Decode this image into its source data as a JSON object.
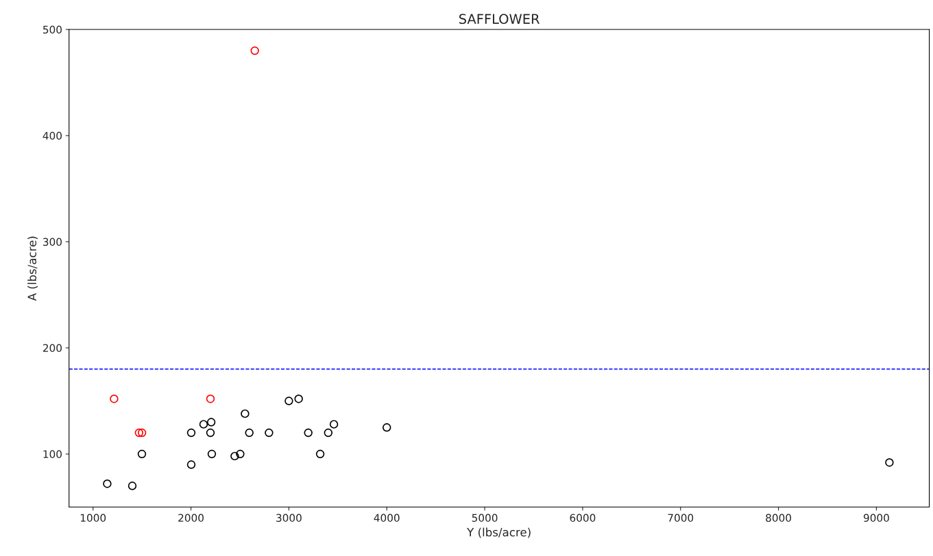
{
  "chart_data": {
    "type": "scatter",
    "title": "SAFFLOWER",
    "xlabel": "Y (lbs/acre)",
    "ylabel": "A (lbs/acre)",
    "xlim": [
      755,
      9540
    ],
    "ylim": [
      50,
      500
    ],
    "xticks": [
      1000,
      2000,
      3000,
      4000,
      5000,
      6000,
      7000,
      8000,
      9000
    ],
    "yticks": [
      100,
      200,
      300,
      400,
      500
    ],
    "marker": "circle",
    "grid": false,
    "legend": false,
    "series": [
      {
        "color": "#000000",
        "x": [
          1145,
          1401,
          1499,
          2003,
          2003,
          2129,
          2207,
          2199,
          2213,
          2447,
          2503,
          2552,
          2596,
          2797,
          3000,
          3100,
          3198,
          3320,
          3402,
          3460,
          4000,
          9133
        ],
        "values": [
          72,
          70,
          100,
          90,
          120,
          128,
          130,
          120,
          100,
          98,
          100,
          138,
          120,
          120,
          150,
          152,
          120,
          100,
          120,
          128,
          125,
          92
        ]
      },
      {
        "color": "#ff0000",
        "x": [
          1215,
          2199,
          1470,
          1500,
          2652
        ],
        "values": [
          152,
          152,
          120,
          120,
          480
        ]
      }
    ],
    "ref_lines": [
      {
        "axis": "y",
        "value": 180,
        "color": "#0000ff",
        "line_style": "dashed"
      }
    ]
  }
}
